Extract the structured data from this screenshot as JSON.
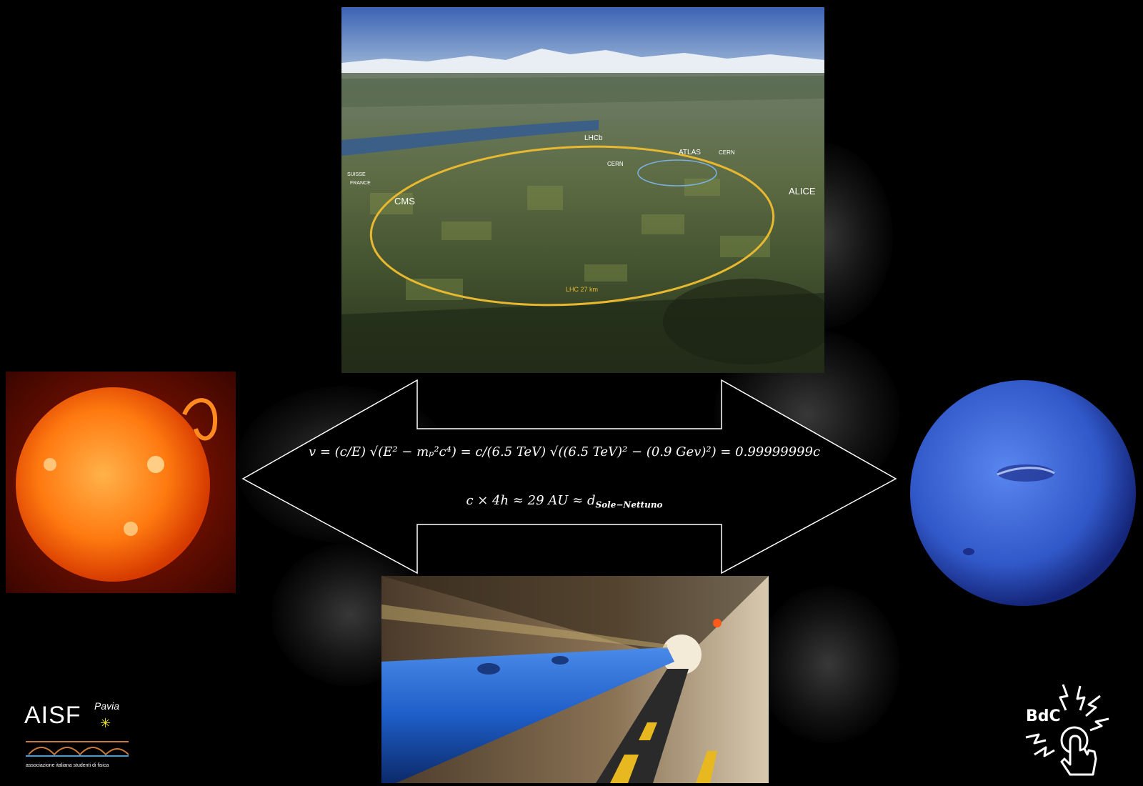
{
  "aerial": {
    "labels": [
      "LHCb",
      "ATLAS",
      "CERN",
      "CERN",
      "SUISSE",
      "FRANCE",
      "CMS",
      "ALICE",
      "LHC 27 km"
    ]
  },
  "formula": {
    "line1": "v = (c/E) √(E² − mₚ²c⁴) = c/(6.5 TeV) √((6.5 TeV)² − (0.9 Gev)²) = 0.99999999c",
    "line2_main": "c × 4h ≈ 29 AU ≈ d",
    "line2_sub": "Sole−Nettuno"
  },
  "logo_left": {
    "name": "AISF",
    "city": "Pavia",
    "tagline": "associazione italiana studenti di fisica"
  },
  "logo_right": {
    "name": "BdC"
  },
  "colors": {
    "background": "#000000",
    "sun": "#ff6a00",
    "neptune": "#3a63d8",
    "ring": "#e8b830",
    "magnet": "#1e5ec8"
  }
}
